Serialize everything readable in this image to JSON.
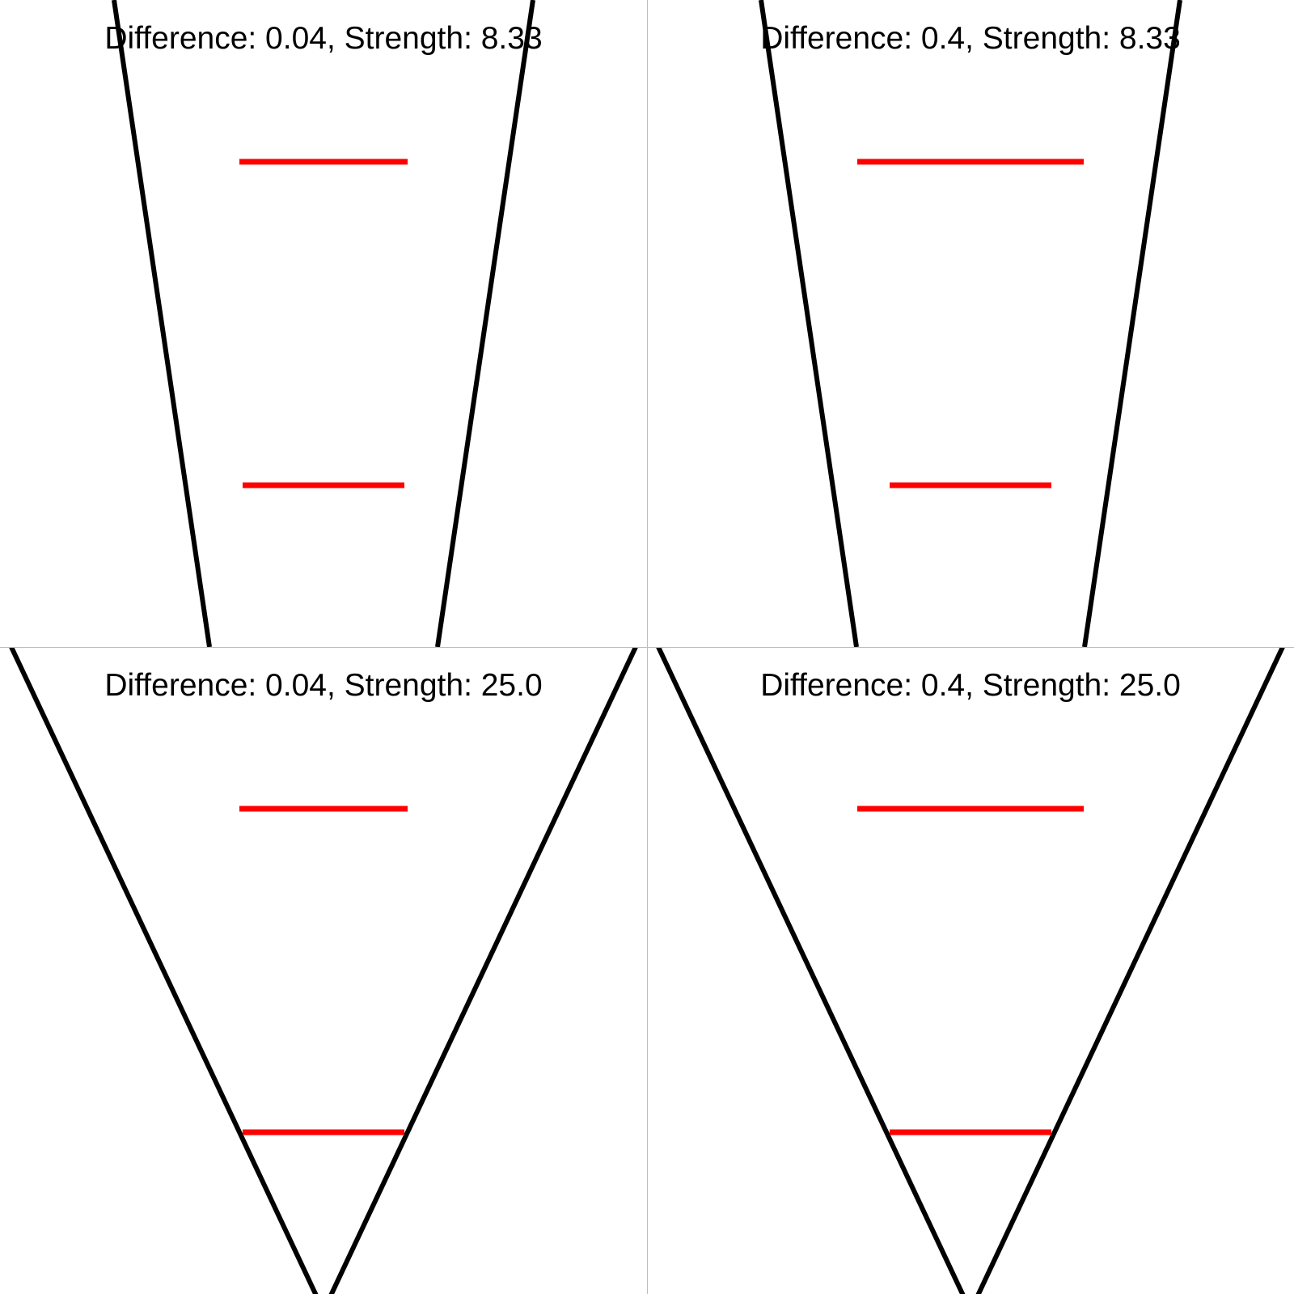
{
  "colors": {
    "background": "#ffffff",
    "boundary_line": "#000000",
    "comparison_line": "#ff0000",
    "divider": "#bdbdbd"
  },
  "panels": [
    {
      "title": "Difference: 0.04, Strength: 8.33",
      "difference": 0.04,
      "strength": 8.33
    },
    {
      "title": "Difference: 0.4, Strength: 8.33",
      "difference": 0.4,
      "strength": 8.33
    },
    {
      "title": "Difference: 0.04, Strength: 25.0",
      "difference": 0.04,
      "strength": 25.0
    },
    {
      "title": "Difference: 0.4, Strength: 25.0",
      "difference": 0.4,
      "strength": 25.0
    }
  ]
}
